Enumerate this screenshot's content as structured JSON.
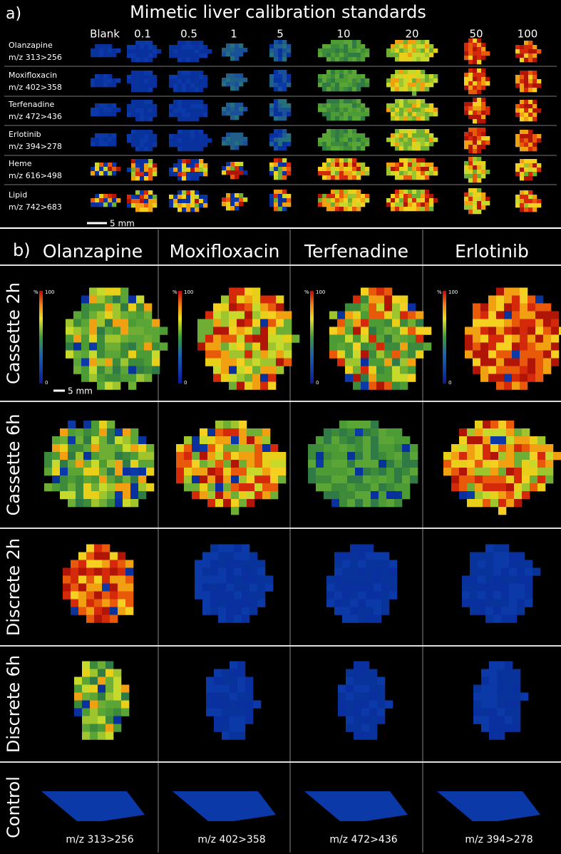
{
  "panel_a": {
    "label": "a)",
    "title": "Mimetic liver calibration standards",
    "scale_bar": "5 mm",
    "columns": [
      "Blank",
      "0.1",
      "0.5",
      "1",
      "5",
      "10",
      "20",
      "50",
      "100"
    ],
    "rows": [
      {
        "name": "Olanzapine",
        "transition": "m/z 313>256"
      },
      {
        "name": "Moxifloxacin",
        "transition": "m/z 402>358"
      },
      {
        "name": "Terfenadine",
        "transition": "m/z 472>436"
      },
      {
        "name": "Erlotinib",
        "transition": "m/z 394>278"
      },
      {
        "name": "Heme",
        "transition": "m/z 616>498"
      },
      {
        "name": "Lipid",
        "transition": "m/z 742>683"
      }
    ]
  },
  "panel_b": {
    "label": "b)",
    "columns": [
      {
        "name": "Olanzapine",
        "transition": "m/z 313>256"
      },
      {
        "name": "Moxifloxacin",
        "transition": "m/z 402>358"
      },
      {
        "name": "Terfenadine",
        "transition": "m/z 472>436"
      },
      {
        "name": "Erlotinib",
        "transition": "m/z 394>278"
      }
    ],
    "rows": [
      "Cassette 2h",
      "Cassette 6h",
      "Discrete 2h",
      "Discrete 6h",
      "Control"
    ],
    "scale_bar": "5 mm",
    "colorbar": {
      "unit": "%",
      "max": "100",
      "min": "0"
    }
  }
}
